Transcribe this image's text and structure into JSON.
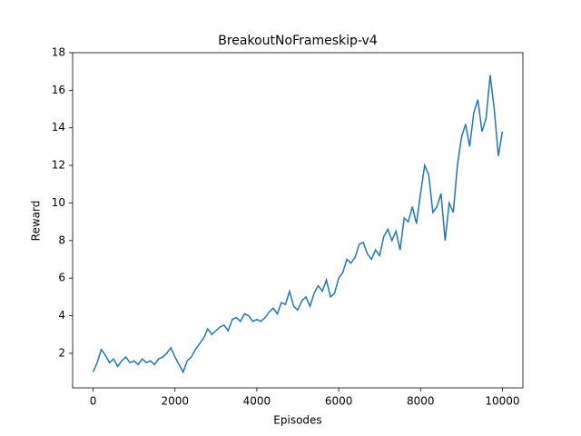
{
  "chart_data": {
    "type": "line",
    "title": "BreakoutNoFrameskip-v4",
    "x_label": "Episodes",
    "y_label": "Reward",
    "x": [
      0,
      100,
      200,
      300,
      400,
      500,
      600,
      700,
      800,
      900,
      1000,
      1100,
      1200,
      1300,
      1400,
      1500,
      1600,
      1700,
      1800,
      1900,
      2000,
      2100,
      2200,
      2300,
      2400,
      2500,
      2600,
      2700,
      2800,
      2900,
      3000,
      3100,
      3200,
      3300,
      3400,
      3500,
      3600,
      3700,
      3800,
      3900,
      4000,
      4100,
      4200,
      4300,
      4400,
      4500,
      4600,
      4700,
      4800,
      4900,
      5000,
      5100,
      5200,
      5300,
      5400,
      5500,
      5600,
      5700,
      5800,
      5900,
      6000,
      6100,
      6200,
      6300,
      6400,
      6500,
      6600,
      6700,
      6800,
      6900,
      7000,
      7100,
      7200,
      7300,
      7400,
      7500,
      7600,
      7700,
      7800,
      7900,
      8000,
      8100,
      8200,
      8300,
      8400,
      8500,
      8600,
      8700,
      8800,
      8900,
      9000,
      9100,
      9200,
      9300,
      9400,
      9500,
      9600,
      9700,
      9800,
      9900,
      10000
    ],
    "series": [
      {
        "name": "Reward",
        "color": "#1f77b4",
        "values": [
          1.0,
          1.5,
          2.2,
          1.9,
          1.5,
          1.7,
          1.3,
          1.6,
          1.8,
          1.5,
          1.6,
          1.4,
          1.7,
          1.5,
          1.6,
          1.4,
          1.7,
          1.8,
          2.0,
          2.3,
          1.8,
          1.4,
          1.0,
          1.6,
          1.8,
          2.2,
          2.5,
          2.8,
          3.3,
          3.0,
          3.2,
          3.4,
          3.5,
          3.2,
          3.8,
          3.9,
          3.7,
          4.1,
          4.0,
          3.7,
          3.8,
          3.7,
          3.9,
          4.2,
          4.4,
          4.1,
          4.7,
          4.6,
          5.3,
          4.5,
          4.3,
          4.8,
          5.0,
          4.5,
          5.2,
          5.6,
          5.3,
          5.9,
          5.0,
          5.2,
          6.0,
          6.3,
          7.0,
          6.8,
          7.1,
          7.8,
          7.9,
          7.3,
          7.0,
          7.5,
          7.2,
          8.2,
          8.6,
          8.0,
          8.5,
          7.5,
          9.2,
          9.0,
          9.8,
          8.9,
          10.5,
          12.0,
          11.5,
          9.5,
          9.8,
          10.5,
          8.0,
          10.0,
          9.5,
          12.0,
          13.5,
          14.2,
          13.0,
          14.8,
          15.5,
          13.8,
          14.5,
          16.8,
          15.0,
          12.5,
          13.8
        ]
      }
    ],
    "xlim": [
      -500,
      10500
    ],
    "ylim": [
      0.16,
      18
    ],
    "xticks": [
      0,
      2000,
      4000,
      6000,
      8000,
      10000
    ],
    "yticks": [
      2,
      4,
      6,
      8,
      10,
      12,
      14,
      16,
      18
    ],
    "grid": false
  }
}
